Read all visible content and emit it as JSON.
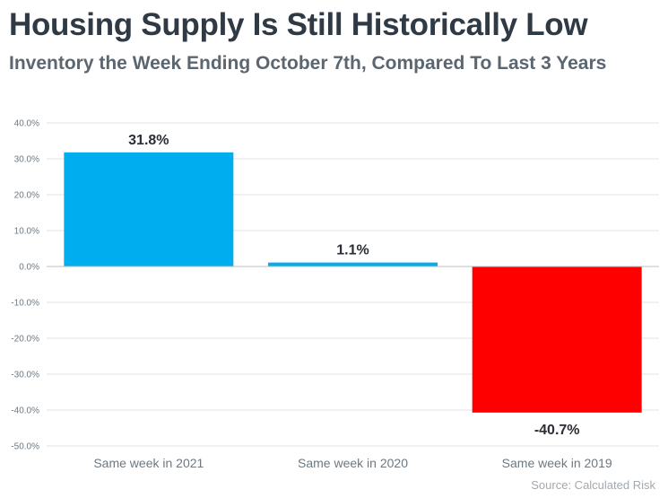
{
  "title": "Housing Supply Is Still Historically Low",
  "subtitle": "Inventory the Week Ending October 7th, Compared To Last 3 Years",
  "source": "Source: Calculated Risk",
  "chart_data": {
    "type": "bar",
    "categories": [
      "Same week in 2021",
      "Same week in 2020",
      "Same week in 2019"
    ],
    "values": [
      31.8,
      1.1,
      -40.7
    ],
    "data_labels": [
      "31.8%",
      "1.1%",
      "-40.7%"
    ],
    "colors": [
      "#00adef",
      "#00adef",
      "#ff0000"
    ],
    "ylim": [
      -50,
      40
    ],
    "yticks": [
      40,
      30,
      20,
      10,
      0,
      -10,
      -20,
      -30,
      -40,
      -50
    ],
    "ytick_labels": [
      "40.0%",
      "30.0%",
      "20.0%",
      "10.0%",
      "0.0%",
      "-10.0%",
      "-20.0%",
      "-30.0%",
      "-40.0%",
      "-50.0%"
    ],
    "grid": true,
    "legend": "none"
  }
}
